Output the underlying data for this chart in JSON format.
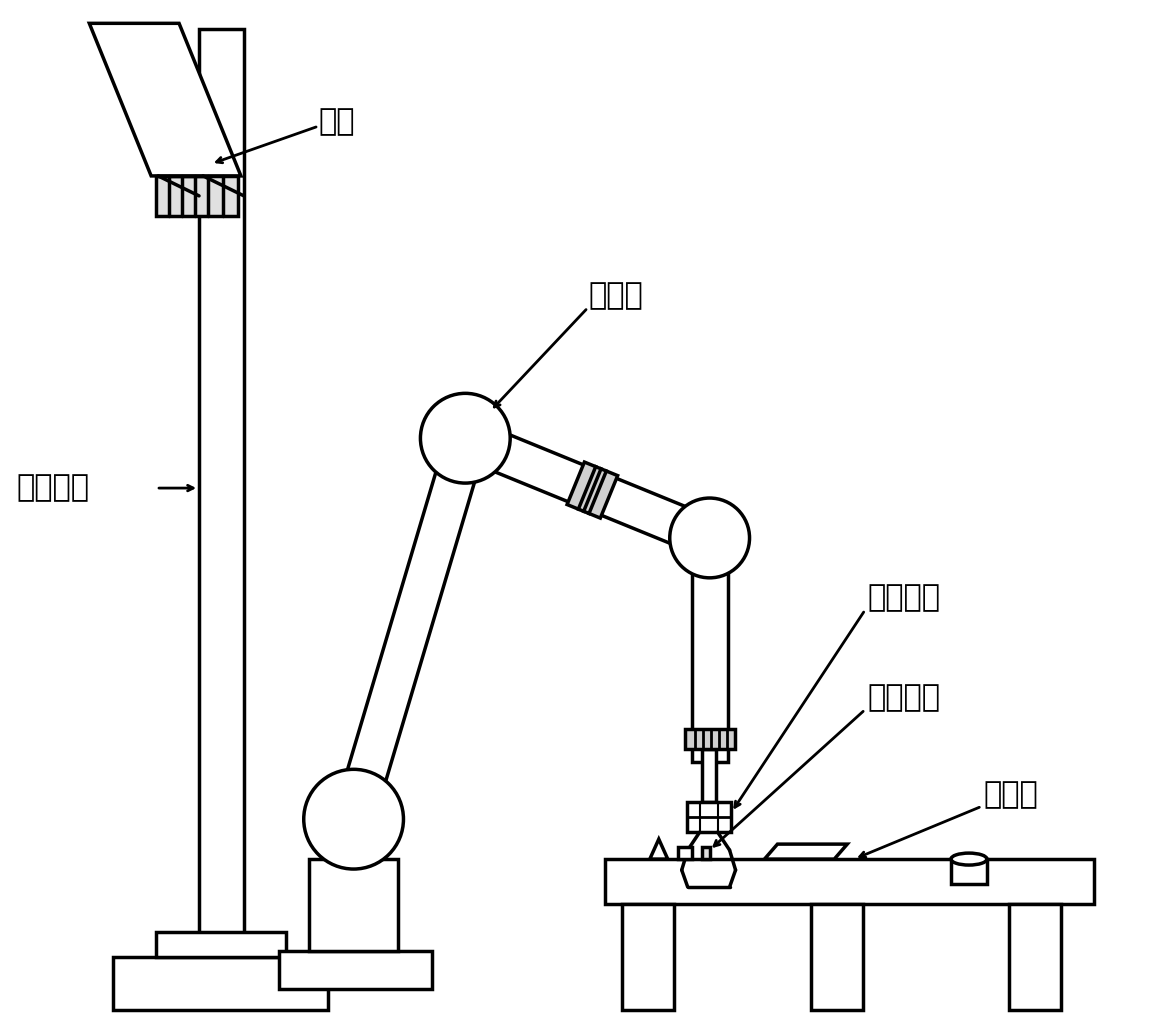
{
  "bg_color": "#ffffff",
  "lc": "#000000",
  "lw": 2.5,
  "labels": {
    "camera": "相机",
    "robot": "机器人",
    "camera_stand": "相机支架",
    "electric_hand": "电动手爪",
    "grabbed_item": "被抓物品",
    "worktable": "工作台"
  },
  "fs": 22,
  "figsize": [
    11.55,
    10.33
  ],
  "dpi": 100
}
